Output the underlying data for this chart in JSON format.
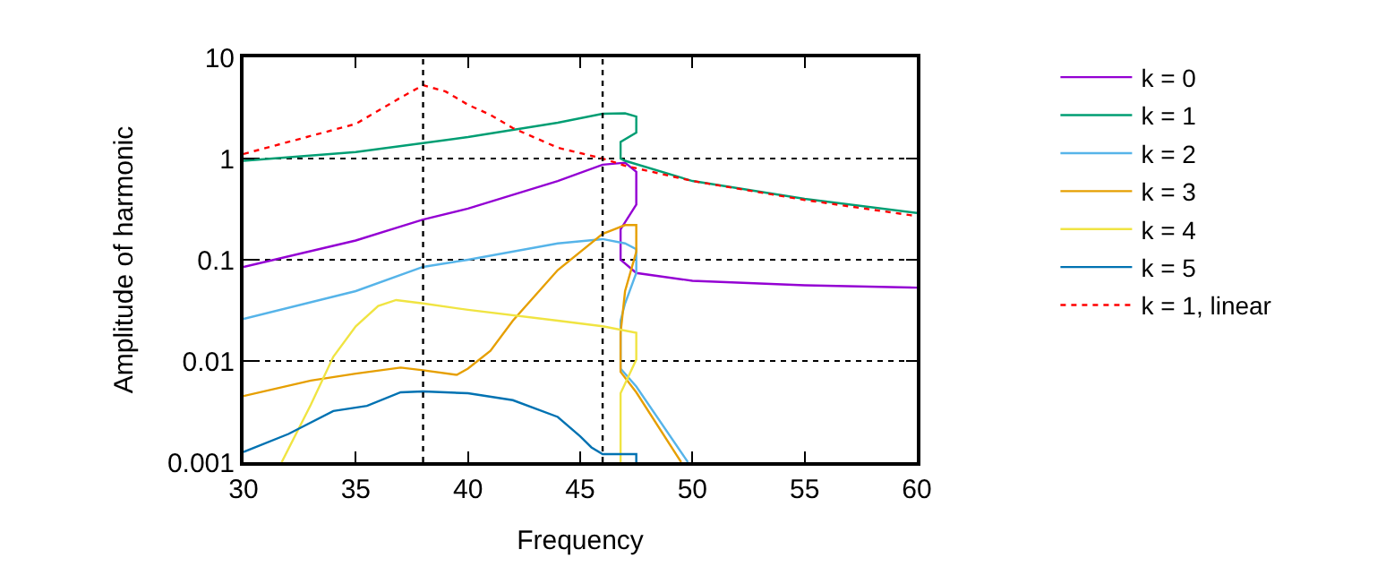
{
  "chart_data": {
    "type": "line",
    "xlabel": "Frequency",
    "ylabel": "Amplitude of harmonic",
    "log": "y",
    "xlim": [
      30,
      60
    ],
    "xticks": [
      30,
      35,
      40,
      45,
      50,
      55,
      60
    ],
    "ylim": [
      0.001,
      10
    ],
    "yticks": [
      0.001,
      0.01,
      0.1,
      1,
      10
    ],
    "grid": "y",
    "legend": "top right",
    "marker": "none",
    "ref_lines": [
      {
        "axis": "x",
        "value": 38,
        "label": null,
        "line_style": "dotted",
        "color": "#000000"
      },
      {
        "axis": "x",
        "value": 46,
        "label": null,
        "line_style": "dotted",
        "color": "#000000"
      }
    ],
    "series": [
      {
        "name": "k = 0",
        "color": "#9400d3",
        "line_style": "solid",
        "x": [
          30,
          35,
          38,
          40,
          44,
          46,
          47,
          47.5,
          47.5,
          46.8,
          46.8,
          47.5,
          50,
          55,
          60
        ],
        "values": [
          0.085,
          0.155,
          0.25,
          0.32,
          0.6,
          0.87,
          0.91,
          0.74,
          0.35,
          0.2,
          0.1,
          0.074,
          0.062,
          0.056,
          0.053
        ]
      },
      {
        "name": "k = 1",
        "color": "#009e73",
        "line_style": "solid",
        "x": [
          30,
          35,
          38,
          40,
          44,
          46,
          47,
          47.5,
          47.5,
          46.8,
          46.8,
          47,
          50,
          55,
          60
        ],
        "values": [
          0.95,
          1.16,
          1.42,
          1.63,
          2.26,
          2.77,
          2.8,
          2.6,
          1.8,
          1.46,
          1.0,
          0.95,
          0.6,
          0.4,
          0.29
        ]
      },
      {
        "name": "k = 2",
        "color": "#56b4e9",
        "line_style": "solid",
        "x": [
          30,
          35,
          38,
          40,
          44,
          46,
          47,
          47.5,
          47.5,
          47,
          46.8,
          46.8,
          47.5,
          49.8
        ],
        "values": [
          0.026,
          0.049,
          0.085,
          0.1,
          0.145,
          0.16,
          0.145,
          0.127,
          0.074,
          0.037,
          0.025,
          0.0084,
          0.0056,
          0.001
        ]
      },
      {
        "name": "k = 3",
        "color": "#e69f00",
        "line_style": "solid",
        "x": [
          30,
          33,
          35,
          37,
          38,
          39.5,
          40,
          41,
          42,
          44,
          46,
          47,
          47.5,
          47.5,
          47,
          46.8,
          46.8,
          47.5,
          49.5
        ],
        "values": [
          0.0045,
          0.0064,
          0.0075,
          0.0086,
          0.0081,
          0.0073,
          0.0084,
          0.0126,
          0.025,
          0.079,
          0.18,
          0.22,
          0.22,
          0.12,
          0.049,
          0.019,
          0.0078,
          0.0049,
          0.001
        ]
      },
      {
        "name": "k = 4",
        "color": "#f0e442",
        "line_style": "solid",
        "x": [
          31.7,
          33,
          34,
          35,
          36,
          36.8,
          38,
          40,
          44,
          46,
          47.5,
          47.5,
          46.8,
          46.8
        ],
        "values": [
          0.001,
          0.0037,
          0.011,
          0.022,
          0.035,
          0.04,
          0.037,
          0.032,
          0.025,
          0.022,
          0.019,
          0.0103,
          0.0048,
          0.001
        ]
      },
      {
        "name": "k = 5",
        "color": "#0072b2",
        "line_style": "solid",
        "x": [
          30,
          32,
          34,
          35.5,
          37,
          38,
          40,
          42,
          44,
          45,
          45.5,
          46,
          47.5,
          47.5
        ],
        "values": [
          0.00126,
          0.0019,
          0.0032,
          0.0036,
          0.0049,
          0.005,
          0.0048,
          0.0041,
          0.0028,
          0.0018,
          0.0014,
          0.0012,
          0.0012,
          0.001
        ]
      },
      {
        "name": "k = 1, linear",
        "color": "#ff0000",
        "line_style": "dotted",
        "x": [
          30,
          35,
          37,
          38,
          39,
          40,
          41,
          42,
          44,
          46,
          47,
          50,
          55,
          60
        ],
        "values": [
          1.11,
          2.2,
          4.0,
          5.3,
          4.6,
          3.4,
          2.7,
          2.0,
          1.28,
          1.0,
          0.85,
          0.6,
          0.39,
          0.27
        ]
      }
    ]
  }
}
